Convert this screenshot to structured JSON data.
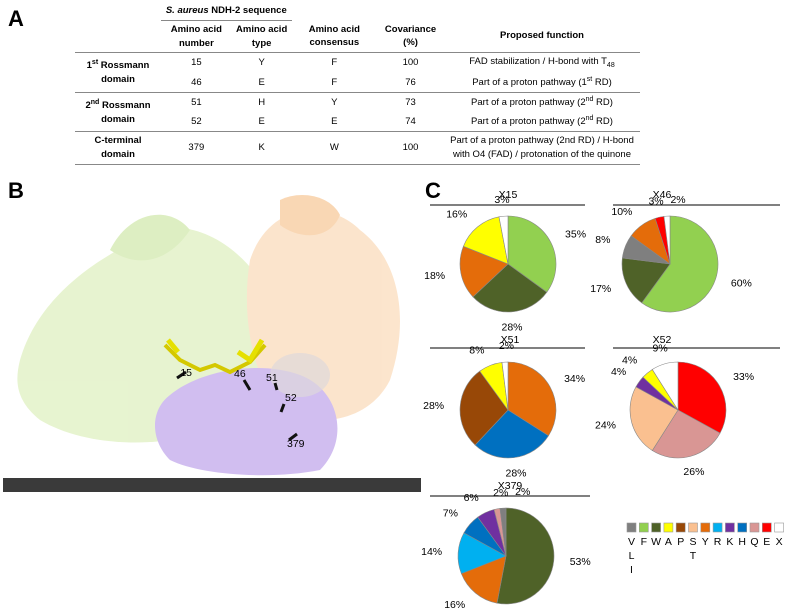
{
  "panel_labels": [
    "A",
    "B",
    "C"
  ],
  "table": {
    "super_header": [
      {
        "italic": "S. aureus"
      },
      {
        "text": "  NDH-2 sequence"
      }
    ],
    "columns": [
      "Amino acid number",
      "Amino acid type",
      "Amino acid consensus",
      "Covariance (%)",
      "Proposed function"
    ],
    "groups": [
      {
        "label": [
          {
            "text": "1"
          },
          {
            "sup": "st"
          },
          {
            "text": " Rossmann domain"
          }
        ],
        "rows": [
          [
            15,
            "Y",
            "F",
            100,
            [
              {
                "text": "FAD stabilization / H-bond with T"
              },
              {
                "sub": "48"
              }
            ]
          ],
          [
            46,
            "E",
            "F",
            76,
            [
              {
                "text": "Part of a proton pathway (1"
              },
              {
                "sup": "st"
              },
              {
                "text": " RD)"
              }
            ]
          ]
        ]
      },
      {
        "label": [
          {
            "text": "2"
          },
          {
            "sup": "nd"
          },
          {
            "text": " Rossmann domain"
          }
        ],
        "rows": [
          [
            51,
            "H",
            "Y",
            73,
            [
              {
                "text": "Part of a proton pathway (2"
              },
              {
                "sup": "nd"
              },
              {
                "text": " RD)"
              }
            ]
          ],
          [
            52,
            "E",
            "E",
            74,
            [
              {
                "text": "Part of a proton pathway (2"
              },
              {
                "sup": "nd"
              },
              {
                "text": " RD)"
              }
            ]
          ]
        ]
      },
      {
        "label": [
          {
            "text": "C-terminal domain"
          }
        ],
        "rows": [
          [
            379,
            "K",
            "W",
            100,
            [
              {
                "text": "Part of a proton pathway (2nd RD) / H-bond with O4 (FAD) / protonation of the quinone"
              }
            ]
          ]
        ]
      }
    ]
  },
  "structure_labels": [
    "15",
    "46",
    "51",
    "52",
    "379"
  ],
  "chart_data": [
    {
      "type": "pie",
      "title": "X15",
      "values": [
        35,
        28,
        18,
        16,
        3
      ],
      "value_labels": [
        "35%",
        "28%",
        "18%",
        "16%",
        "3%"
      ],
      "colors": [
        "#92d050",
        "#4f6228",
        "#e46c0a",
        "#ffff00",
        "#ffffff"
      ]
    },
    {
      "type": "pie",
      "title": "X46",
      "values": [
        60,
        17,
        8,
        10,
        3,
        2
      ],
      "value_labels": [
        "60%",
        "17%",
        "8%",
        "10%",
        "3%",
        "2%"
      ],
      "colors": [
        "#92d050",
        "#4f6228",
        "#7f7f7f",
        "#e46c0a",
        "#ff0000",
        "#ffffff"
      ]
    },
    {
      "type": "pie",
      "title": "X51",
      "values": [
        34,
        28,
        28,
        8,
        2
      ],
      "value_labels": [
        "34%",
        "28%",
        "28%",
        "8%",
        "2%"
      ],
      "colors": [
        "#e46c0a",
        "#0070c0",
        "#984807",
        "#ffff00",
        "#ffffff"
      ]
    },
    {
      "type": "pie",
      "title": "X52",
      "values": [
        33,
        26,
        24,
        4,
        4,
        9
      ],
      "value_labels": [
        "33%",
        "26%",
        "24%",
        "4%",
        "4%",
        "9%"
      ],
      "colors": [
        "#ff0000",
        "#d99694",
        "#fac090",
        "#7030a0",
        "#ffff00",
        "#ffffff"
      ]
    },
    {
      "type": "pie",
      "title": "X379",
      "values": [
        53,
        16,
        14,
        7,
        6,
        2,
        2
      ],
      "value_labels": [
        "53%",
        "16%",
        "14%",
        "7%",
        "6%",
        "2%",
        "2%"
      ],
      "colors": [
        "#4f6228",
        "#e46c0a",
        "#00b0f0",
        "#0070c0",
        "#7030a0",
        "#d99694",
        "#7f7f7f"
      ]
    }
  ],
  "legend": [
    {
      "label": "V",
      "color": "#7f7f7f",
      "extra": [
        "L",
        "I"
      ]
    },
    {
      "label": "F",
      "color": "#92d050"
    },
    {
      "label": "W",
      "color": "#4f6228"
    },
    {
      "label": "A",
      "color": "#ffff00"
    },
    {
      "label": "P",
      "color": "#984807"
    },
    {
      "label": "S",
      "color": "#fac090",
      "extra": [
        "T"
      ]
    },
    {
      "label": "Y",
      "color": "#e46c0a"
    },
    {
      "label": "R",
      "color": "#00b0f0"
    },
    {
      "label": "K",
      "color": "#7030a0"
    },
    {
      "label": "H",
      "color": "#0070c0"
    },
    {
      "label": "Q",
      "color": "#d99694"
    },
    {
      "label": "E",
      "color": "#ff0000"
    },
    {
      "label": "X",
      "color": "#ffffff"
    }
  ]
}
